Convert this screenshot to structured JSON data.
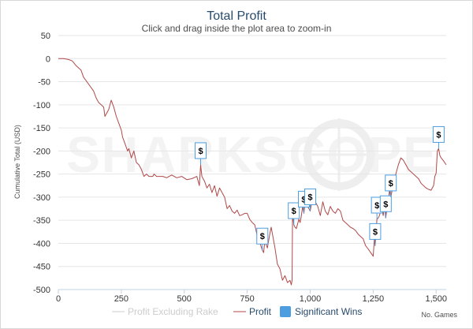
{
  "chart_data": {
    "type": "line",
    "title": "Total Profit",
    "subtitle": "Click and drag inside the plot area to zoom-in",
    "ylabel": "Cumulative Total (USD)",
    "xlabel": "No. Games",
    "watermark": "SHARKSCOPE",
    "xlim": [
      0,
      1540
    ],
    "ylim": [
      -500,
      50
    ],
    "x_ticks": [
      0,
      250,
      500,
      750,
      1000,
      1250,
      1500
    ],
    "x_tick_labels": [
      "0",
      "250",
      "500",
      "750",
      "1,000",
      "1,250",
      "1,500"
    ],
    "y_ticks": [
      50,
      0,
      -50,
      -100,
      -150,
      -200,
      -250,
      -300,
      -350,
      -400,
      -450,
      -500
    ],
    "y_tick_labels": [
      "50",
      "0",
      "-50",
      "-100",
      "-150",
      "-200",
      "-250",
      "-300",
      "-350",
      "-400",
      "-450",
      "-500"
    ],
    "grid": "horizontal",
    "legend_position": "bottom",
    "series": [
      {
        "name": "Profit",
        "color": "#b04848",
        "x": [
          0,
          20,
          40,
          55,
          70,
          90,
          100,
          120,
          140,
          150,
          160,
          170,
          180,
          185,
          200,
          210,
          220,
          230,
          240,
          250,
          255,
          265,
          275,
          280,
          290,
          300,
          310,
          320,
          330,
          340,
          350,
          360,
          375,
          380,
          390,
          400,
          415,
          430,
          450,
          470,
          490,
          510,
          530,
          550,
          555,
          560,
          565,
          570,
          580,
          590,
          600,
          610,
          620,
          630,
          640,
          650,
          660,
          670,
          680,
          690,
          700,
          710,
          720,
          730,
          740,
          750,
          760,
          770,
          780,
          790,
          800,
          810,
          815,
          820,
          830,
          840,
          845,
          850,
          860,
          870,
          880,
          890,
          900,
          910,
          920,
          925,
          928,
          930,
          935,
          940,
          945,
          955,
          960,
          965,
          970,
          975,
          980,
          990,
          1000,
          1010,
          1020,
          1030,
          1040,
          1050,
          1060,
          1070,
          1080,
          1090,
          1100,
          1110,
          1120,
          1130,
          1140,
          1150,
          1160,
          1170,
          1180,
          1190,
          1200,
          1210,
          1220,
          1230,
          1240,
          1250,
          1255,
          1258,
          1262,
          1265,
          1270,
          1275,
          1280,
          1285,
          1290,
          1295,
          1300,
          1305,
          1310,
          1315,
          1320,
          1330,
          1340,
          1350,
          1360,
          1370,
          1380,
          1390,
          1400,
          1410,
          1420,
          1430,
          1440,
          1450,
          1460,
          1470,
          1480,
          1490,
          1495,
          1500,
          1505,
          1510,
          1515,
          1520,
          1530,
          1540
        ],
        "y": [
          0,
          0,
          -2,
          -5,
          -15,
          -25,
          -40,
          -55,
          -70,
          -85,
          -95,
          -100,
          -105,
          -125,
          -110,
          -90,
          -105,
          -125,
          -140,
          -155,
          -170,
          -185,
          -200,
          -195,
          -215,
          -200,
          -225,
          -230,
          -240,
          -255,
          -250,
          -255,
          -255,
          -250,
          -255,
          -255,
          -255,
          -258,
          -252,
          -258,
          -255,
          -262,
          -260,
          -255,
          -265,
          -275,
          -230,
          -255,
          -265,
          -280,
          -272,
          -290,
          -275,
          -298,
          -280,
          -290,
          -300,
          -325,
          -318,
          -330,
          -335,
          -328,
          -340,
          -338,
          -335,
          -335,
          -348,
          -355,
          -360,
          -385,
          -398,
          -415,
          -420,
          -395,
          -410,
          -378,
          -365,
          -380,
          -410,
          -445,
          -455,
          -480,
          -470,
          -485,
          -480,
          -490,
          -480,
          -335,
          -360,
          -365,
          -368,
          -348,
          -355,
          -340,
          -320,
          -335,
          -310,
          -320,
          -330,
          -298,
          -310,
          -320,
          -340,
          -310,
          -330,
          -338,
          -320,
          -330,
          -335,
          -325,
          -330,
          -350,
          -355,
          -360,
          -365,
          -368,
          -372,
          -380,
          -385,
          -390,
          -405,
          -412,
          -420,
          -428,
          -390,
          -405,
          -372,
          -348,
          -345,
          -340,
          -330,
          -325,
          -340,
          -320,
          -345,
          -325,
          -310,
          -285,
          -300,
          -272,
          -250,
          -230,
          -215,
          -220,
          -230,
          -240,
          -245,
          -250,
          -255,
          -260,
          -270,
          -275,
          -280,
          -283,
          -285,
          -275,
          -255,
          -248,
          -200,
          -195,
          -210,
          -215,
          -222,
          -230
        ]
      },
      {
        "name": "Profit Excluding Rake",
        "color": "#cccccc",
        "hidden": true
      }
    ],
    "markers": {
      "name": "Significant Wins",
      "color": "#4d9ee0",
      "symbol": "$",
      "x": [
        565,
        810,
        935,
        975,
        1000,
        1258,
        1265,
        1300,
        1320,
        1510
      ]
    }
  }
}
